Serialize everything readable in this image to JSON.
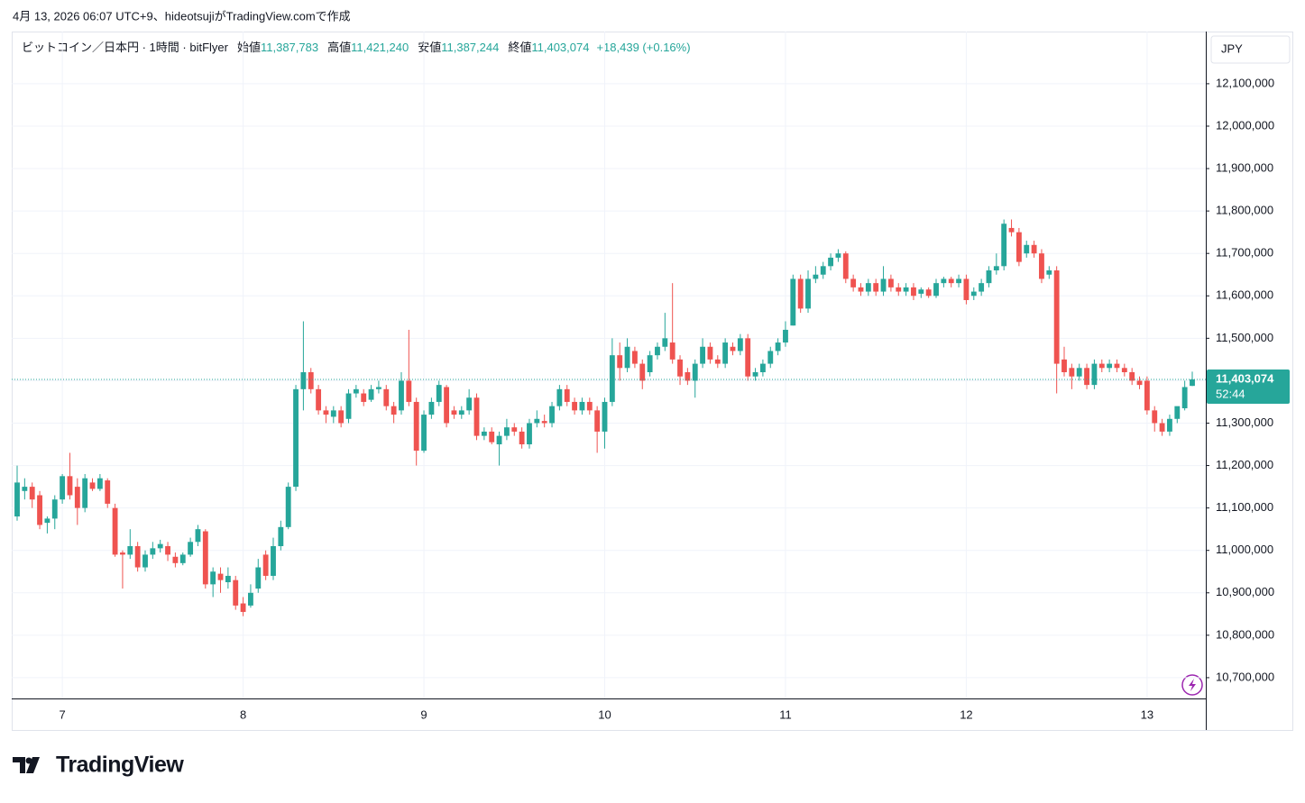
{
  "header": "4月 13, 2026 06:07 UTC+9、hideotsujiがTradingView.comで作成",
  "brand": "TradingView",
  "chart_data": {
    "type": "candlestick",
    "legend": {
      "symbol": "ビットコイン／日本円 · 1時間 · bitFlyer",
      "items": [
        {
          "label": "始値",
          "value": "11,387,783"
        },
        {
          "label": "高値",
          "value": "11,421,240"
        },
        {
          "label": "安値",
          "value": "11,387,244"
        },
        {
          "label": "終値",
          "value": "11,403,074"
        }
      ],
      "change": "+18,439 (+0.16%)"
    },
    "currency": "JPY",
    "up_color": "#26a69a",
    "down_color": "#ef5350",
    "grid": true,
    "ylim": [
      10651000,
      12223000
    ],
    "yticks": [
      {
        "value": 10700000,
        "label": "10,700,000"
      },
      {
        "value": 10800000,
        "label": "10,800,000"
      },
      {
        "value": 10900000,
        "label": "10,900,000"
      },
      {
        "value": 11000000,
        "label": "11,000,000"
      },
      {
        "value": 11100000,
        "label": "11,100,000"
      },
      {
        "value": 11200000,
        "label": "11,200,000"
      },
      {
        "value": 11300000,
        "label": "11,300,000"
      },
      {
        "value": 11400000,
        "label": "11,400,000"
      },
      {
        "value": 11500000,
        "label": "11,500,000"
      },
      {
        "value": 11600000,
        "label": "11,600,000"
      },
      {
        "value": 11700000,
        "label": "11,700,000"
      },
      {
        "value": 11800000,
        "label": "11,800,000"
      },
      {
        "value": 11900000,
        "label": "11,900,000"
      },
      {
        "value": 12000000,
        "label": "12,000,000"
      },
      {
        "value": 12100000,
        "label": "12,100,000"
      }
    ],
    "last_price": {
      "value": 11403074,
      "label": "11,403,074"
    },
    "countdown": "52:44",
    "categories": [
      null,
      null,
      null,
      null,
      null,
      null,
      "7",
      null,
      null,
      null,
      null,
      null,
      null,
      null,
      null,
      null,
      null,
      null,
      null,
      null,
      null,
      null,
      null,
      null,
      null,
      null,
      null,
      null,
      null,
      null,
      "8",
      null,
      null,
      null,
      null,
      null,
      null,
      null,
      null,
      null,
      null,
      null,
      null,
      null,
      null,
      null,
      null,
      null,
      null,
      null,
      null,
      null,
      null,
      null,
      "9",
      null,
      null,
      null,
      null,
      null,
      null,
      null,
      null,
      null,
      null,
      null,
      null,
      null,
      null,
      null,
      null,
      null,
      null,
      null,
      null,
      null,
      null,
      null,
      "10",
      null,
      null,
      null,
      null,
      null,
      null,
      null,
      null,
      null,
      null,
      null,
      null,
      null,
      null,
      null,
      null,
      null,
      null,
      null,
      null,
      null,
      null,
      null,
      "11",
      null,
      null,
      null,
      null,
      null,
      null,
      null,
      null,
      null,
      null,
      null,
      null,
      null,
      null,
      null,
      null,
      null,
      null,
      null,
      null,
      null,
      null,
      null,
      "12",
      null,
      null,
      null,
      null,
      null,
      null,
      null,
      null,
      null,
      null,
      null,
      null,
      null,
      null,
      null,
      null,
      null,
      null,
      null,
      null,
      null,
      null,
      null,
      "13",
      null,
      null,
      null,
      null,
      null,
      null
    ],
    "open": [
      11080000,
      11140000,
      11150000,
      11130000,
      11065000,
      11075000,
      11120000,
      11175000,
      11150000,
      11100000,
      11160000,
      11145000,
      11165000,
      11100000,
      10995000,
      10990000,
      11010000,
      10960000,
      10990000,
      11005000,
      11010000,
      10985000,
      10970000,
      10990000,
      11020000,
      11045000,
      10920000,
      10945000,
      10925000,
      10930000,
      10875000,
      10870000,
      10910000,
      10990000,
      10940000,
      11010000,
      11055000,
      11150000,
      11380000,
      11420000,
      11380000,
      11330000,
      11315000,
      11330000,
      11310000,
      11370000,
      11370000,
      11355000,
      11380000,
      11380000,
      11340000,
      11330000,
      11400000,
      11350000,
      11235000,
      11320000,
      11350000,
      11385000,
      11330000,
      11320000,
      11330000,
      11360000,
      11270000,
      11280000,
      11250000,
      11270000,
      11290000,
      11280000,
      11250000,
      11300000,
      11305000,
      11300000,
      11340000,
      11380000,
      11350000,
      11330000,
      11350000,
      11330000,
      11280000,
      11350000,
      11460000,
      11430000,
      11470000,
      11440000,
      11420000,
      11460000,
      11480000,
      11490000,
      11450000,
      11420000,
      11400000,
      11440000,
      11480000,
      11450000,
      11440000,
      11480000,
      11470000,
      11500000,
      11410000,
      11420000,
      11440000,
      11470000,
      11490000,
      11530000,
      11640000,
      11570000,
      11640000,
      11650000,
      11670000,
      11690000,
      11700000,
      11640000,
      11620000,
      11610000,
      11630000,
      11610000,
      11640000,
      11620000,
      11610000,
      11620000,
      11605000,
      11615000,
      11600000,
      11630000,
      11640000,
      11630000,
      11640000,
      11600000,
      11610000,
      11630000,
      11660000,
      11670000,
      11760000,
      11750000,
      11700000,
      11720000,
      11700000,
      11650000,
      11660000,
      11450000,
      11430000,
      11410000,
      11430000,
      11390000,
      11440000,
      11430000,
      11440000,
      11430000,
      11420000,
      11400000,
      11400000,
      11330000,
      11300000,
      11280000,
      11310000,
      11335000,
      11387783
    ],
    "high": [
      11200000,
      11170000,
      11160000,
      11140000,
      11080000,
      11130000,
      11180000,
      11230000,
      11170000,
      11180000,
      11170000,
      11180000,
      11170000,
      11110000,
      11000000,
      11050000,
      11020000,
      11000000,
      11020000,
      11025000,
      11020000,
      10995000,
      10995000,
      11030000,
      11060000,
      11050000,
      10960000,
      10960000,
      10960000,
      10940000,
      10890000,
      10920000,
      10980000,
      11000000,
      11030000,
      11070000,
      11160000,
      11390000,
      11540000,
      11430000,
      11390000,
      11340000,
      11340000,
      11340000,
      11380000,
      11390000,
      11380000,
      11390000,
      11400000,
      11390000,
      11350000,
      11420000,
      11520000,
      11360000,
      11330000,
      11360000,
      11400000,
      11390000,
      11340000,
      11340000,
      11380000,
      11370000,
      11290000,
      11290000,
      11280000,
      11310000,
      11300000,
      11290000,
      11310000,
      11330000,
      11320000,
      11350000,
      11390000,
      11390000,
      11360000,
      11360000,
      11360000,
      11340000,
      11360000,
      11500000,
      11490000,
      11500000,
      11480000,
      11450000,
      11470000,
      11490000,
      11560000,
      11630000,
      11460000,
      11430000,
      11450000,
      11500000,
      11490000,
      11460000,
      11500000,
      11490000,
      11510000,
      11510000,
      11430000,
      11450000,
      11480000,
      11500000,
      11540000,
      11650000,
      11650000,
      11660000,
      11670000,
      11680000,
      11700000,
      11710000,
      11705000,
      11650000,
      11630000,
      11640000,
      11640000,
      11670000,
      11650000,
      11630000,
      11630000,
      11630000,
      11620000,
      11620000,
      11640000,
      11645000,
      11645000,
      11650000,
      11650000,
      11620000,
      11640000,
      11670000,
      11700000,
      11780000,
      11780000,
      11760000,
      11730000,
      11730000,
      11710000,
      11670000,
      11670000,
      11480000,
      11440000,
      11440000,
      11440000,
      11450000,
      11450000,
      11450000,
      11450000,
      11440000,
      11430000,
      11410000,
      11410000,
      11340000,
      11310000,
      11320000,
      11330000,
      11400000,
      11421240
    ],
    "low": [
      11070000,
      11120000,
      11100000,
      11050000,
      11040000,
      11050000,
      11110000,
      11120000,
      11060000,
      11090000,
      11140000,
      11140000,
      11100000,
      10985000,
      10910000,
      10980000,
      10950000,
      10950000,
      10980000,
      10995000,
      10975000,
      10960000,
      10965000,
      10985000,
      11010000,
      10910000,
      10890000,
      10900000,
      10910000,
      10860000,
      10845000,
      10865000,
      10900000,
      10930000,
      10930000,
      11000000,
      11050000,
      11140000,
      11330000,
      11370000,
      11320000,
      11300000,
      11300000,
      11290000,
      11300000,
      11360000,
      11340000,
      11350000,
      11370000,
      11330000,
      11300000,
      11320000,
      11340000,
      11200000,
      11230000,
      11310000,
      11340000,
      11290000,
      11310000,
      11310000,
      11320000,
      11260000,
      11260000,
      11250000,
      11200000,
      11260000,
      11270000,
      11240000,
      11240000,
      11290000,
      11290000,
      11290000,
      11330000,
      11340000,
      11320000,
      11320000,
      11320000,
      11230000,
      11240000,
      11340000,
      11400000,
      11420000,
      11430000,
      11380000,
      11410000,
      11450000,
      11470000,
      11440000,
      11390000,
      11390000,
      11360000,
      11430000,
      11440000,
      11430000,
      11430000,
      11460000,
      11460000,
      11400000,
      11400000,
      11410000,
      11430000,
      11460000,
      11480000,
      11530000,
      11560000,
      11560000,
      11630000,
      11640000,
      11660000,
      11680000,
      11630000,
      11610000,
      11600000,
      11600000,
      11600000,
      11600000,
      11610000,
      11600000,
      11600000,
      11590000,
      11595000,
      11595000,
      11595000,
      11620000,
      11620000,
      11620000,
      11580000,
      11590000,
      11600000,
      11620000,
      11650000,
      11660000,
      11740000,
      11670000,
      11690000,
      11690000,
      11630000,
      11640000,
      11370000,
      11410000,
      11380000,
      11400000,
      11380000,
      11380000,
      11420000,
      11420000,
      11420000,
      11410000,
      11390000,
      11380000,
      11320000,
      11280000,
      11270000,
      11270000,
      11300000,
      11330000,
      11387244
    ],
    "close": [
      11160000,
      11150000,
      11120000,
      11060000,
      11075000,
      11120000,
      11175000,
      11130000,
      11100000,
      11170000,
      11145000,
      11170000,
      11110000,
      10990000,
      10990000,
      11010000,
      10960000,
      10990000,
      11005000,
      11015000,
      10990000,
      10970000,
      10990000,
      11020000,
      11050000,
      10920000,
      10950000,
      10930000,
      10940000,
      10870000,
      10855000,
      10900000,
      10960000,
      10940000,
      11010000,
      11055000,
      11150000,
      11380000,
      11420000,
      11380000,
      11330000,
      11320000,
      11330000,
      11300000,
      11370000,
      11380000,
      11350000,
      11380000,
      11385000,
      11340000,
      11320000,
      11400000,
      11350000,
      11235000,
      11320000,
      11350000,
      11390000,
      11300000,
      11320000,
      11330000,
      11360000,
      11270000,
      11280000,
      11255000,
      11270000,
      11290000,
      11280000,
      11250000,
      11300000,
      11310000,
      11300000,
      11340000,
      11380000,
      11350000,
      11330000,
      11350000,
      11330000,
      11280000,
      11350000,
      11460000,
      11430000,
      11480000,
      11440000,
      11400000,
      11460000,
      11480000,
      11500000,
      11450000,
      11410000,
      11400000,
      11440000,
      11480000,
      11450000,
      11440000,
      11490000,
      11470000,
      11500000,
      11410000,
      11420000,
      11440000,
      11470000,
      11490000,
      11520000,
      11640000,
      11570000,
      11640000,
      11650000,
      11670000,
      11690000,
      11700000,
      11640000,
      11620000,
      11610000,
      11630000,
      11610000,
      11640000,
      11620000,
      11610000,
      11620000,
      11600000,
      11615000,
      11600000,
      11630000,
      11640000,
      11630000,
      11640000,
      11590000,
      11610000,
      11630000,
      11660000,
      11670000,
      11770000,
      11750000,
      11680000,
      11720000,
      11700000,
      11640000,
      11660000,
      11440000,
      11420000,
      11410000,
      11430000,
      11390000,
      11440000,
      11430000,
      11440000,
      11430000,
      11420000,
      11400000,
      11390000,
      11330000,
      11300000,
      11280000,
      11310000,
      11340000,
      11385000,
      11403074
    ]
  }
}
